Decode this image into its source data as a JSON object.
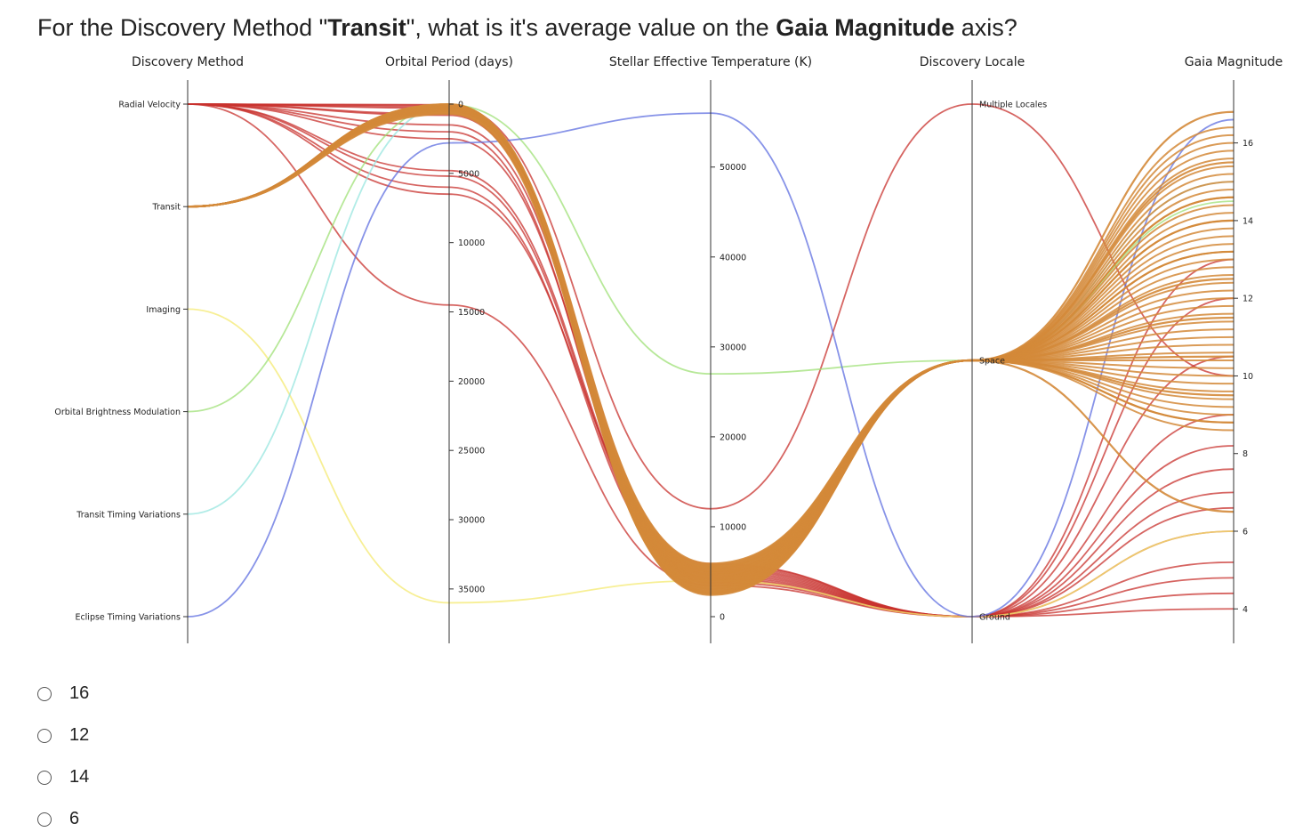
{
  "question": {
    "prefix": "For the Discovery Method \"",
    "method": "Transit",
    "middle": "\", what is it's average value on the ",
    "axis": "Gaia Magnitude",
    "suffix": " axis?"
  },
  "options": [
    "16",
    "12",
    "14",
    "6"
  ],
  "chart_data": {
    "type": "parallel_coordinates",
    "axes": [
      {
        "name": "Discovery Method",
        "type": "categorical",
        "categories": [
          "Radial Velocity",
          "Transit",
          "Imaging",
          "Orbital Brightness Modulation",
          "Transit Timing Variations",
          "Eclipse Timing Variations"
        ]
      },
      {
        "name": "Orbital Period (days)",
        "type": "numeric",
        "range": [
          0,
          37000
        ],
        "inverted": true,
        "ticks": [
          0,
          5000,
          10000,
          15000,
          20000,
          25000,
          30000,
          35000
        ],
        "tick_labels": [
          "0",
          "5000",
          "10000",
          "15000",
          "20000",
          "25000",
          "30000",
          "35000"
        ]
      },
      {
        "name": "Stellar Effective Temperature (K)",
        "type": "numeric",
        "range": [
          0,
          57000
        ],
        "ticks": [
          0,
          10000,
          20000,
          30000,
          40000,
          50000
        ],
        "tick_labels": [
          "0",
          "10000",
          "20000",
          "30000",
          "40000",
          "50000"
        ]
      },
      {
        "name": "Discovery Locale",
        "type": "categorical",
        "categories": [
          "Multiple Locales",
          "Space",
          "Ground"
        ]
      },
      {
        "name": "Gaia Magnitude",
        "type": "numeric",
        "range": [
          3.8,
          17.0
        ],
        "ticks": [
          4,
          6,
          8,
          10,
          12,
          14,
          16
        ],
        "tick_labels": [
          "4",
          "6",
          "8",
          "10",
          "12",
          "14",
          "16"
        ]
      }
    ],
    "colors": {
      "Radial Velocity": "#c8312d",
      "Transit": "#d4893a",
      "Imaging": "#f4ea72",
      "Orbital Brightness Modulation": "#9fe077",
      "Transit Timing Variations": "#97e6df",
      "Eclipse Timing Variations": "#5f6fe0"
    },
    "lines": [
      {
        "method": "Radial Velocity",
        "period": 14500,
        "temp": 3500,
        "locale": "Ground",
        "gaia": 4.0
      },
      {
        "method": "Radial Velocity",
        "period": 100,
        "temp": 12000,
        "locale": "Multiple Locales",
        "gaia": 10.0
      },
      {
        "method": "Radial Velocity",
        "period": 50,
        "temp": 5800,
        "locale": "Ground",
        "gaia": 5.2
      },
      {
        "method": "Radial Velocity",
        "period": 300,
        "temp": 5600,
        "locale": "Ground",
        "gaia": 6.0
      },
      {
        "method": "Radial Velocity",
        "period": 800,
        "temp": 5400,
        "locale": "Ground",
        "gaia": 7.0
      },
      {
        "method": "Radial Velocity",
        "period": 1500,
        "temp": 5200,
        "locale": "Ground",
        "gaia": 7.6
      },
      {
        "method": "Radial Velocity",
        "period": 2500,
        "temp": 5000,
        "locale": "Ground",
        "gaia": 8.2
      },
      {
        "method": "Radial Velocity",
        "period": 4800,
        "temp": 4800,
        "locale": "Ground",
        "gaia": 9.0
      },
      {
        "method": "Radial Velocity",
        "period": 5200,
        "temp": 4600,
        "locale": "Ground",
        "gaia": 10.5
      },
      {
        "method": "Radial Velocity",
        "period": 6000,
        "temp": 4400,
        "locale": "Ground",
        "gaia": 12.0
      },
      {
        "method": "Radial Velocity",
        "period": 6500,
        "temp": 5900,
        "locale": "Ground",
        "gaia": 13.0
      },
      {
        "method": "Radial Velocity",
        "period": 200,
        "temp": 4200,
        "locale": "Ground",
        "gaia": 4.4
      },
      {
        "method": "Radial Velocity",
        "period": 700,
        "temp": 4000,
        "locale": "Ground",
        "gaia": 4.8
      },
      {
        "method": "Radial Velocity",
        "period": 2000,
        "temp": 3800,
        "locale": "Ground",
        "gaia": 6.6
      },
      {
        "method": "Transit",
        "period": 10,
        "temp": 5900,
        "locale": "Space",
        "gaia": 16.8
      },
      {
        "method": "Transit",
        "period": 20,
        "temp": 5400,
        "locale": "Space",
        "gaia": 15.5
      },
      {
        "method": "Transit",
        "period": 40,
        "temp": 5000,
        "locale": "Space",
        "gaia": 14.6
      },
      {
        "method": "Transit",
        "period": 60,
        "temp": 4700,
        "locale": "Space",
        "gaia": 14.0
      },
      {
        "method": "Transit",
        "period": 90,
        "temp": 4300,
        "locale": "Space",
        "gaia": 13.2
      },
      {
        "method": "Transit",
        "period": 130,
        "temp": 4000,
        "locale": "Space",
        "gaia": 12.5
      },
      {
        "method": "Transit",
        "period": 180,
        "temp": 3700,
        "locale": "Space",
        "gaia": 11.5
      },
      {
        "method": "Transit",
        "period": 250,
        "temp": 3400,
        "locale": "Space",
        "gaia": 10.5
      },
      {
        "method": "Transit",
        "period": 350,
        "temp": 3100,
        "locale": "Space",
        "gaia": 9.5
      },
      {
        "method": "Transit",
        "period": 500,
        "temp": 2800,
        "locale": "Space",
        "gaia": 8.8
      },
      {
        "method": "Transit",
        "period": 700,
        "temp": 2600,
        "locale": "Space",
        "gaia": 6.5
      },
      {
        "method": "Imaging",
        "period": 36000,
        "temp": 4000,
        "locale": "Ground",
        "gaia": 6.0
      },
      {
        "method": "Orbital Brightness Modulation",
        "period": 50,
        "temp": 27000,
        "locale": "Space",
        "gaia": 14.5
      },
      {
        "method": "Transit Timing Variations",
        "period": 100,
        "temp": 5500,
        "locale": "Space",
        "gaia": 15.0
      },
      {
        "method": "Eclipse Timing Variations",
        "period": 2800,
        "temp": 56000,
        "locale": "Ground",
        "gaia": 16.6
      }
    ]
  }
}
